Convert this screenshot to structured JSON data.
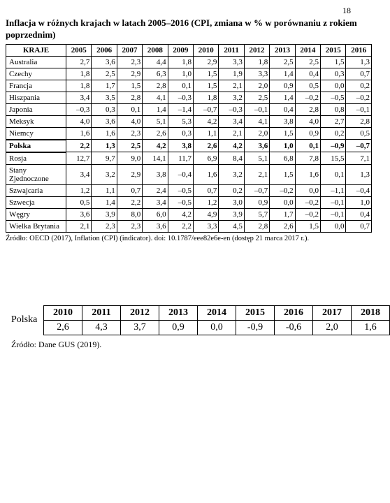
{
  "page_number": "18",
  "title": "Inflacja w różnych krajach w latach 2005–2016 (CPI, zmiana w % w porównaniu z rokiem poprzednim)",
  "table1": {
    "header_country": "KRAJE",
    "years": [
      "2005",
      "2006",
      "2007",
      "2008",
      "2009",
      "2010",
      "2011",
      "2012",
      "2013",
      "2014",
      "2015",
      "2016"
    ],
    "rows": [
      {
        "country": "Australia",
        "vals": [
          "2,7",
          "3,6",
          "2,3",
          "4,4",
          "1,8",
          "2,9",
          "3,3",
          "1,8",
          "2,5",
          "2,5",
          "1,5",
          "1,3"
        ],
        "bold": false
      },
      {
        "country": "Czechy",
        "vals": [
          "1,8",
          "2,5",
          "2,9",
          "6,3",
          "1,0",
          "1,5",
          "1,9",
          "3,3",
          "1,4",
          "0,4",
          "0,3",
          "0,7"
        ],
        "bold": false
      },
      {
        "country": "Francja",
        "vals": [
          "1,8",
          "1,7",
          "1,5",
          "2,8",
          "0,1",
          "1,5",
          "2,1",
          "2,0",
          "0,9",
          "0,5",
          "0,0",
          "0,2"
        ],
        "bold": false
      },
      {
        "country": "Hiszpania",
        "vals": [
          "3,4",
          "3,5",
          "2,8",
          "4,1",
          "–0,3",
          "1,8",
          "3,2",
          "2,5",
          "1,4",
          "–0,2",
          "–0,5",
          "–0,2"
        ],
        "bold": false
      },
      {
        "country": "Japonia",
        "vals": [
          "–0,3",
          "0,3",
          "0,1",
          "1,4",
          "–1,4",
          "–0,7",
          "–0,3",
          "–0,1",
          "0,4",
          "2,8",
          "0,8",
          "–0,1"
        ],
        "bold": false
      },
      {
        "country": "Meksyk",
        "vals": [
          "4,0",
          "3,6",
          "4,0",
          "5,1",
          "5,3",
          "4,2",
          "3,4",
          "4,1",
          "3,8",
          "4,0",
          "2,7",
          "2,8"
        ],
        "bold": false
      },
      {
        "country": "Niemcy",
        "vals": [
          "1,6",
          "1,6",
          "2,3",
          "2,6",
          "0,3",
          "1,1",
          "2,1",
          "2,0",
          "1,5",
          "0,9",
          "0,2",
          "0,5"
        ],
        "bold": false
      },
      {
        "country": "Polska",
        "vals": [
          "2,2",
          "1,3",
          "2,5",
          "4,2",
          "3,8",
          "2,6",
          "4,2",
          "3,6",
          "1,0",
          "0,1",
          "–0,9",
          "–0,7"
        ],
        "bold": true
      },
      {
        "country": "Rosja",
        "vals": [
          "12,7",
          "9,7",
          "9,0",
          "14,1",
          "11,7",
          "6,9",
          "8,4",
          "5,1",
          "6,8",
          "7,8",
          "15,5",
          "7,1"
        ],
        "bold": false
      },
      {
        "country": "Stany Zjednoczone",
        "vals": [
          "3,4",
          "3,2",
          "2,9",
          "3,8",
          "–0,4",
          "1,6",
          "3,2",
          "2,1",
          "1,5",
          "1,6",
          "0,1",
          "1,3"
        ],
        "bold": false
      },
      {
        "country": "Szwajcaria",
        "vals": [
          "1,2",
          "1,1",
          "0,7",
          "2,4",
          "–0,5",
          "0,7",
          "0,2",
          "–0,7",
          "–0,2",
          "0,0",
          "–1,1",
          "–0,4"
        ],
        "bold": false
      },
      {
        "country": "Szwecja",
        "vals": [
          "0,5",
          "1,4",
          "2,2",
          "3,4",
          "–0,5",
          "1,2",
          "3,0",
          "0,9",
          "0,0",
          "–0,2",
          "–0,1",
          "1,0"
        ],
        "bold": false
      },
      {
        "country": "Węgry",
        "vals": [
          "3,6",
          "3,9",
          "8,0",
          "6,0",
          "4,2",
          "4,9",
          "3,9",
          "5,7",
          "1,7",
          "–0,2",
          "–0,1",
          "0,4"
        ],
        "bold": false
      },
      {
        "country": "Wielka Brytania",
        "vals": [
          "2,1",
          "2,3",
          "2,3",
          "3,6",
          "2,2",
          "3,3",
          "4,5",
          "2,8",
          "2,6",
          "1,5",
          "0,0",
          "0,7"
        ],
        "bold": false
      }
    ]
  },
  "source1": "Źródło: OECD (2017), Inflation (CPI) (indicator). doi: 10.1787/eee82e6e-en (dostęp 21 marca 2017 r.).",
  "table2": {
    "label": "Polska",
    "years": [
      "2010",
      "2011",
      "2012",
      "2013",
      "2014",
      "2015",
      "2016",
      "2017",
      "2018"
    ],
    "vals": [
      "2,6",
      "4,3",
      "3,7",
      "0,9",
      "0,0",
      "-0,9",
      "-0,6",
      "2,0",
      "1,6"
    ]
  },
  "source2": "Źródło: Dane GUS (2019)."
}
